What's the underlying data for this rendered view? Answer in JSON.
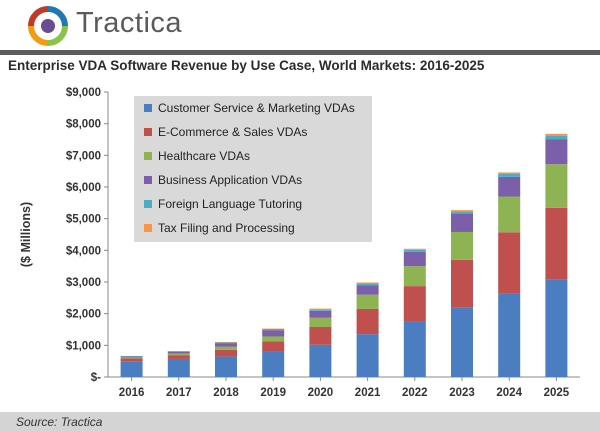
{
  "brand": {
    "name": "Tractica",
    "colors": [
      "#1f77b4",
      "#8bc34a",
      "#f39c12",
      "#c0392b",
      "#6a4c93"
    ]
  },
  "footer": {
    "source": "Source: Tractica"
  },
  "chart_data": {
    "type": "bar",
    "stacked": true,
    "title": "Enterprise VDA Software Revenue by Use Case, World Markets: 2016-2025",
    "xlabel": "",
    "ylabel": "($ Millions)",
    "ylim": [
      0,
      9000
    ],
    "yticks": [
      0,
      1000,
      2000,
      3000,
      4000,
      5000,
      6000,
      7000,
      8000,
      9000
    ],
    "ytick_labels": [
      "$-",
      "$1,000",
      "$2,000",
      "$3,000",
      "$4,000",
      "$5,000",
      "$6,000",
      "$7,000",
      "$8,000",
      "$9,000"
    ],
    "grid": false,
    "legend_position": "top-left",
    "categories": [
      "2016",
      "2017",
      "2018",
      "2019",
      "2020",
      "2021",
      "2022",
      "2023",
      "2024",
      "2025"
    ],
    "series": [
      {
        "name": "Customer Service & Marketing VDAs",
        "color": "#4a7ec0",
        "values": [
          500,
          570,
          650,
          820,
          1020,
          1350,
          1750,
          2200,
          2650,
          3070
        ]
      },
      {
        "name": "E-Commerce & Sales VDAs",
        "color": "#c0504d",
        "values": [
          90,
          120,
          210,
          300,
          560,
          800,
          1120,
          1500,
          1920,
          2270
        ]
      },
      {
        "name": "Healthcare VDAs",
        "color": "#8db353",
        "values": [
          30,
          55,
          100,
          160,
          290,
          450,
          630,
          880,
          1130,
          1380
        ]
      },
      {
        "name": "Business Application VDAs",
        "color": "#7b5fa8",
        "values": [
          30,
          55,
          110,
          200,
          220,
          300,
          450,
          580,
          620,
          780
        ]
      },
      {
        "name": "Foreign Language Tutoring",
        "color": "#4bacc6",
        "values": [
          10,
          15,
          25,
          35,
          50,
          60,
          70,
          75,
          90,
          110
        ]
      },
      {
        "name": "Tax Filing and Processing",
        "color": "#f79646",
        "values": [
          0,
          5,
          10,
          15,
          20,
          25,
          30,
          35,
          50,
          70
        ]
      }
    ]
  }
}
